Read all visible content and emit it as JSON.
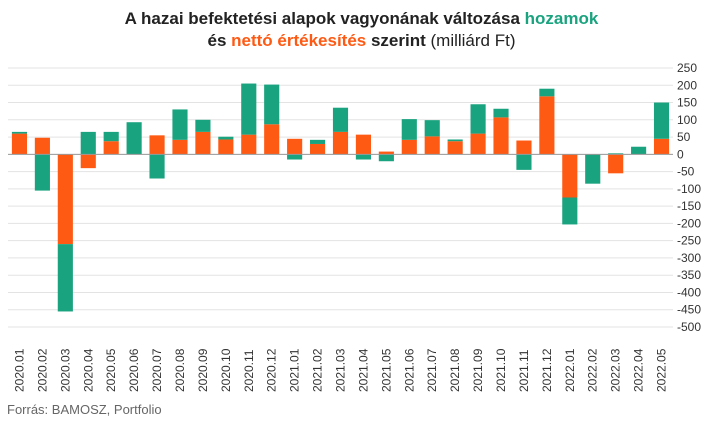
{
  "title": {
    "line1_prefix": "A hazai befektetési alapok vagyonának változása ",
    "line1_returns": "hozamok",
    "line2_and": "és ",
    "line2_sales": "nettó értékesítés",
    "line2_by": " szerint",
    "line2_unit": " (milliárd Ft)"
  },
  "source": "Forrás: BAMOSZ, Portfolio",
  "colors": {
    "hozamok": "#1aa37f",
    "netto_ertekesites": "#ff5a14",
    "grid": "#e3e3e3"
  },
  "chart_data": {
    "type": "bar",
    "stacked": true,
    "categories": [
      "2020.01",
      "2020.02",
      "2020.03",
      "2020.04",
      "2020.05",
      "2020.06",
      "2020.07",
      "2020.08",
      "2020.09",
      "2020.10",
      "2020.11",
      "2020.12",
      "2021.01",
      "2021.02",
      "2021.03",
      "2021.04",
      "2021.05",
      "2021.06",
      "2021.07",
      "2021.08",
      "2021.09",
      "2021.10",
      "2021.11",
      "2021.12",
      "2022.01",
      "2022.02",
      "2022.03",
      "2022.04",
      "2022.05"
    ],
    "series": [
      {
        "name": "nettó értékesítés",
        "values": [
          60,
          48,
          -260,
          -40,
          38,
          0,
          55,
          42,
          65,
          43,
          57,
          87,
          45,
          30,
          65,
          57,
          8,
          42,
          52,
          38,
          60,
          107,
          40,
          168,
          -125,
          0,
          -55,
          0,
          45
        ]
      },
      {
        "name": "hozamok",
        "values": [
          5,
          -105,
          -195,
          65,
          27,
          93,
          -70,
          88,
          35,
          8,
          148,
          115,
          -15,
          12,
          70,
          -15,
          -20,
          60,
          47,
          5,
          85,
          25,
          -45,
          22,
          -78,
          -85,
          3,
          22,
          105
        ]
      }
    ],
    "ylim": [
      -500,
      250
    ],
    "yticks": [
      -500,
      -450,
      -400,
      -350,
      -300,
      -250,
      -200,
      -150,
      -100,
      -50,
      0,
      50,
      100,
      150,
      200,
      250
    ],
    "y_axis_position": "right",
    "grid": true,
    "legend": "none"
  }
}
